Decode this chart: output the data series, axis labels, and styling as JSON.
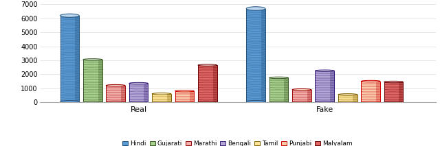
{
  "categories": [
    "Real",
    "Fake"
  ],
  "languages": [
    "Hindi",
    "Gujarati",
    "Marathi",
    "Bengali",
    "Tamil",
    "Punjabi",
    "Malyalam"
  ],
  "values_real": [
    6200,
    3050,
    1200,
    1350,
    600,
    800,
    2650
  ],
  "values_fake": [
    6700,
    1750,
    900,
    2250,
    550,
    1500,
    1450
  ],
  "ylim": [
    0,
    7000
  ],
  "yticks": [
    0,
    1000,
    2000,
    3000,
    4000,
    5000,
    6000,
    7000
  ],
  "group_centers": [
    0.25,
    0.72
  ],
  "bar_width": 0.048,
  "bar_spacing": 0.058,
  "figsize": [
    6.4,
    2.13
  ],
  "dpi": 100,
  "background_color": "#FFFFFF",
  "grid_color": "#DDDDDD",
  "legend_labels": [
    "Hindi",
    "Gujarati",
    "Marathi",
    "Bengali",
    "Tamil",
    "Punjabi",
    "Malyalam"
  ],
  "face_colors": [
    "#5B9BD5",
    "#A9D18E",
    "#F4AEAC",
    "#B4A7D6",
    "#FFE599",
    "#F9CBAD",
    "#E06666"
  ],
  "light_colors": [
    "#BDD7EE",
    "#D9EAD3",
    "#FCE5CD",
    "#D9D2E9",
    "#FFF2CC",
    "#FCE5CD",
    "#F4CCCC"
  ],
  "dark_colors": [
    "#1F4E79",
    "#375623",
    "#990000",
    "#351C75",
    "#7F6000",
    "#CC0000",
    "#660000"
  ],
  "mid_colors": [
    "#2E75B6",
    "#548235",
    "#CC4125",
    "#674EA7",
    "#BF9000",
    "#CC4125",
    "#CC0000"
  ],
  "hatch_styles": [
    "-----",
    "xxxxx",
    ".....",
    "+++++",
    "ooooo",
    ".....",
    "xxxxx"
  ],
  "legend_marker_colors": [
    "#4472C4",
    "#70AD47",
    "#FF7F7F",
    "#9900FF",
    "#FFC000",
    "#FF99CC",
    "#CC0000"
  ]
}
